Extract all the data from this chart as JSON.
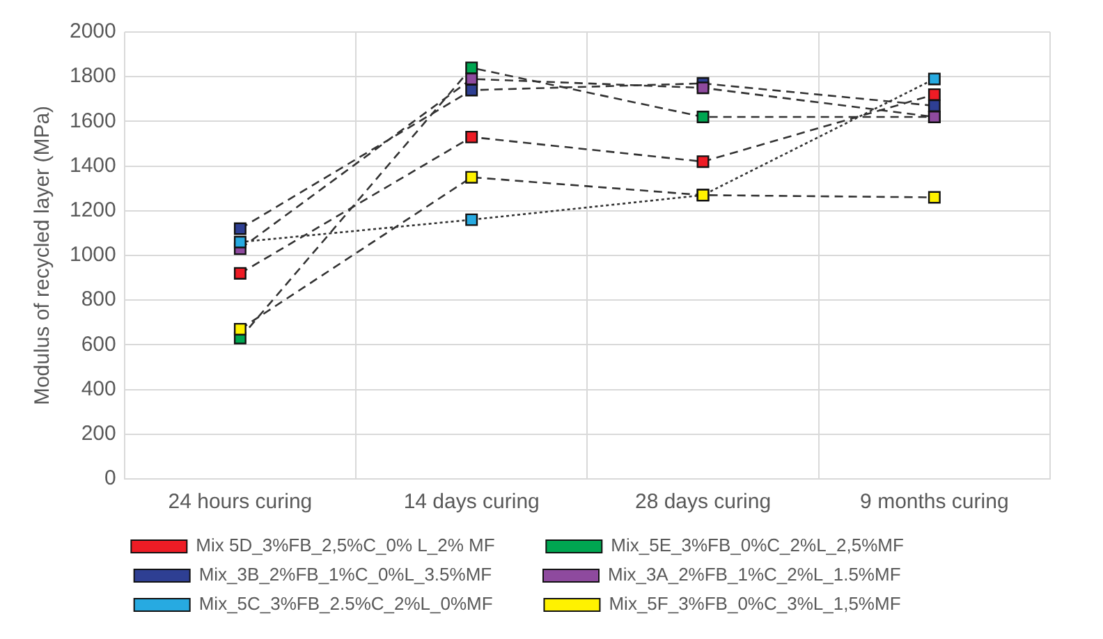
{
  "chart_data": {
    "type": "line",
    "ylabel": "Modulus of recycled layer (MPa)",
    "categories": [
      "24 hours curing",
      "14 days curing",
      "28 days curing",
      "9 months curing"
    ],
    "ylim": [
      0,
      2000
    ],
    "yticks": [
      0,
      200,
      400,
      600,
      800,
      1000,
      1200,
      1400,
      1600,
      1800,
      2000
    ],
    "grid": true,
    "legend": "bottom",
    "marker": "square",
    "series": [
      {
        "name": "Mix 5D_3%FB_2,5%C_0% L_2% MF",
        "color": "#ee1c25",
        "line_style": "dashed",
        "values": [
          920,
          1530,
          1420,
          1720
        ]
      },
      {
        "name": "Mix_5E_3%FB_0%C_2%L_2,5%MF",
        "color": "#00a651",
        "line_style": "dashed",
        "values": [
          630,
          1840,
          1620,
          1620
        ]
      },
      {
        "name": "Mix_3B_2%FB_1%C_0%L_3.5%MF",
        "color": "#2e3f93",
        "line_style": "dashed",
        "values": [
          1120,
          1740,
          1770,
          1670
        ]
      },
      {
        "name": "Mix_3A_2%FB_1%C_2%L_1.5%MF",
        "color": "#8e4a9e",
        "line_style": "dashed",
        "values": [
          1030,
          1790,
          1750,
          1620
        ]
      },
      {
        "name": "Mix_5C_3%FB_2.5%C_2%L_0%MF",
        "color": "#27aae1",
        "line_style": "dotted",
        "values": [
          1060,
          1160,
          1270,
          1790
        ]
      },
      {
        "name": "Mix_5F_3%FB_0%C_3%L_1,5%MF",
        "color": "#fff200",
        "line_style": "dashed",
        "values": [
          670,
          1350,
          1270,
          1260
        ]
      }
    ]
  }
}
